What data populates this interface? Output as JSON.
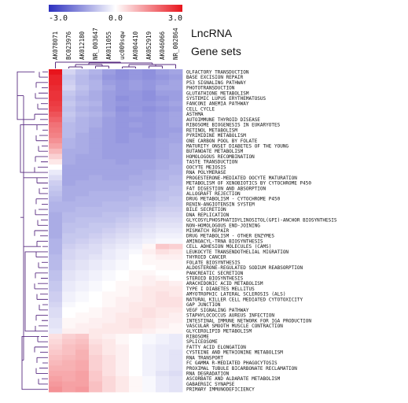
{
  "legend": {
    "min_label": "-3.0",
    "mid_label": "0.0",
    "max_label": "3.0",
    "low_color": "#2b2fbf",
    "mid_color": "#ffffff",
    "high_color": "#e8141c"
  },
  "side_labels": {
    "lncrna": "LncRNA",
    "gene_sets": "Gene sets"
  },
  "chart_data": {
    "type": "heatmap",
    "title": "",
    "color_range": [
      -3.0,
      3.0
    ],
    "columns": [
      "AK078071",
      "BC023976",
      "AK012180",
      "NR_003647",
      "AK011055",
      "uc009sqw",
      "AK004410",
      "AK052919",
      "AK046066",
      "NR_002864"
    ],
    "rows": [
      "OLFACTORY TRANSDUCTION",
      "BASE EXCISION REPAIR",
      "P53 SIGNALING PATHWAY",
      "PHOTOTRANSDUCTION",
      "GLUTATHIONE METABOLISM",
      "SYSTEMIC LUPUS ERYTHEMATOSUS",
      "FANCONI ANEMIA PATHWAY",
      "CELL CYCLE",
      "ASTHMA",
      "AUTOIMMUNE THYROID DISEASE",
      "RIBOSOME BIOGENESIS IN EUKARYOTES",
      "RETINOL METABOLISM",
      "PYRIMIDINE METABOLISM",
      "ONE CARBON POOL BY FOLATE",
      "MATURITY ONSET DIABETES OF THE YOUNG",
      "BUTANOATE METABOLISM",
      "HOMOLOGOUS RECOMBINATION",
      "TASTE TRANSDUCTION",
      "OOCYTE MEIOSIS",
      "RNA POLYMERASE",
      "PROGESTERONE-MEDIATED OOCYTE MATURATION",
      "METABOLISM OF XENOBIOTICS BY CYTOCHROME P450",
      "FAT DIGESTION AND ABSORPTION",
      "ALLOGRAFT REJECTION",
      "DRUG METABOLISM - CYTOCHROME P450",
      "RENIN-ANGIOTENSIN SYSTEM",
      "BILE SECRETION",
      "DNA REPLICATION",
      "GLYCOSYLPHOSPHATIDYLINOSITOL(GPI)-ANCHOR BIOSYNTHESIS",
      "NON-HOMOLOGOUS END-JOINING",
      "MISMATCH REPAIR",
      "DRUG METABOLISM - OTHER ENZYMES",
      "AMINOACYL-TRNA BIOSYNTHESIS",
      "CELL ADHESION MOLECULES (CAMS)",
      "LEUKOCYTE TRANSENDOTHELIAL MIGRATION",
      "THYROID CANCER",
      "FOLATE BIOSYNTHESIS",
      "ALDOSTERONE-REGULATED SODIUM REABSORPTION",
      "PANCREATIC SECRETION",
      "STEROID BIOSYNTHESIS",
      "ARACHIDONIC ACID METABOLISM",
      "TYPE I DIABETES MELLITUS",
      "AMYOTROPHIC LATERAL SCLEROSIS (ALS)",
      "NATURAL KILLER CELL MEDIATED CYTOTOXICITY",
      "GAP JUNCTION",
      "VEGF SIGNALING PATHWAY",
      "STAPHYLOCOCCUS AUREUS INFECTION",
      "INTESTINAL IMMUNE NETWORK FOR IGA PRODUCTION",
      "VASCULAR SMOOTH MUSCLE CONTRACTION",
      "GLYCEROLIPID METABOLISM",
      "RIBOSOME",
      "SPLICEOSOME",
      "FATTY ACID ELONGATION",
      "CYSTEINE AND METHIONINE METABOLISM",
      "RNA TRANSPORT",
      "FC GAMMA R-MEDIATED PHAGOCYTOSIS",
      "PROXIMAL TUBULE BICARBONATE RECLAMATION",
      "RNA DEGRADATION",
      "ASCORBATE AND ALDARATE METABOLISM",
      "GABAERGIC SYNAPSE",
      "PRIMARY IMMUNODEFICIENCY"
    ],
    "values": [
      [
        3.0,
        -0.6,
        -0.9,
        -1.1,
        -1.4,
        -1.6,
        -1.5,
        -1.6,
        -1.4,
        -1.3
      ],
      [
        2.8,
        -0.8,
        -1.0,
        -1.2,
        -1.5,
        -1.6,
        -1.5,
        -1.6,
        -1.5,
        -1.4
      ],
      [
        2.8,
        -0.7,
        -1.0,
        -1.1,
        -1.4,
        -1.5,
        -1.4,
        -1.5,
        -1.4,
        -1.3
      ],
      [
        2.7,
        -0.6,
        -0.9,
        -1.1,
        -1.3,
        -1.5,
        -1.4,
        -1.5,
        -1.3,
        -1.3
      ],
      [
        2.6,
        -0.8,
        -1.0,
        -1.2,
        -1.4,
        -1.5,
        -1.5,
        -1.6,
        -1.4,
        -1.4
      ],
      [
        2.6,
        -0.9,
        -1.1,
        -1.2,
        -1.4,
        -1.6,
        -1.5,
        -1.6,
        -1.5,
        -1.4
      ],
      [
        2.5,
        -0.8,
        -1.0,
        -1.1,
        -1.4,
        -1.5,
        -1.5,
        -1.5,
        -1.4,
        -1.3
      ],
      [
        2.4,
        -0.9,
        -1.1,
        -1.2,
        -1.4,
        -1.6,
        -1.5,
        -1.6,
        -1.5,
        -1.4
      ],
      [
        2.2,
        -0.8,
        -1.0,
        -1.1,
        -1.3,
        -1.5,
        -1.4,
        -1.5,
        -1.4,
        -1.3
      ],
      [
        2.0,
        -0.9,
        -1.1,
        -1.2,
        -1.4,
        -1.5,
        -1.5,
        -1.5,
        -1.4,
        -1.3
      ],
      [
        1.8,
        -1.0,
        -1.1,
        -1.2,
        -1.4,
        -1.5,
        -1.4,
        -1.5,
        -1.4,
        -1.3
      ],
      [
        1.7,
        -1.0,
        -1.1,
        -1.3,
        -1.4,
        -1.5,
        -1.5,
        -1.5,
        -1.4,
        -1.4
      ],
      [
        1.6,
        -1.0,
        -1.2,
        -1.3,
        -1.4,
        -1.5,
        -1.4,
        -1.5,
        -1.4,
        -1.3
      ],
      [
        1.4,
        -1.1,
        -1.2,
        -1.3,
        -1.4,
        -1.5,
        -1.4,
        -1.4,
        -1.3,
        -1.3
      ],
      [
        1.2,
        -1.1,
        -1.2,
        -1.3,
        -1.4,
        -1.4,
        -1.4,
        -1.4,
        -1.3,
        -1.2
      ],
      [
        0.9,
        -1.2,
        -1.2,
        -1.3,
        -1.4,
        -1.4,
        -1.4,
        -1.4,
        -1.3,
        -1.2
      ],
      [
        0.6,
        -1.2,
        -1.3,
        -1.3,
        -1.4,
        -1.4,
        -1.4,
        -1.4,
        -1.3,
        -1.2
      ],
      [
        0.3,
        -1.2,
        -1.3,
        -1.3,
        -1.3,
        -1.4,
        -1.3,
        -1.3,
        -1.2,
        -1.2
      ],
      [
        0.0,
        -1.3,
        -1.3,
        -1.3,
        -1.3,
        -1.3,
        -1.3,
        -1.3,
        -1.2,
        -1.1
      ],
      [
        -0.3,
        -1.3,
        -1.3,
        -1.3,
        -1.3,
        -1.3,
        -1.3,
        -1.2,
        -1.1,
        -1.1
      ],
      [
        -0.5,
        -1.3,
        -1.3,
        -1.2,
        -1.3,
        -1.3,
        -1.2,
        -1.2,
        -1.1,
        -1.0
      ],
      [
        -0.7,
        -1.3,
        -1.2,
        -1.2,
        -1.2,
        -1.2,
        -1.2,
        -1.1,
        -1.0,
        -1.0
      ],
      [
        -0.8,
        -1.2,
        -1.2,
        -1.2,
        -1.2,
        -1.2,
        -1.1,
        -1.1,
        -1.0,
        -0.9
      ],
      [
        -0.9,
        -1.2,
        -1.2,
        -1.1,
        -1.1,
        -1.1,
        -1.1,
        -1.0,
        -0.9,
        -0.9
      ],
      [
        -1.0,
        -1.2,
        -1.1,
        -1.1,
        -1.1,
        -1.1,
        -1.0,
        -1.0,
        -0.9,
        -0.8
      ],
      [
        -1.1,
        -1.1,
        -1.1,
        -1.1,
        -1.0,
        -1.0,
        -1.0,
        -0.9,
        -0.8,
        -0.8
      ],
      [
        -1.1,
        -1.1,
        -1.0,
        -1.0,
        -1.0,
        -1.0,
        -0.9,
        -0.8,
        -0.7,
        -0.7
      ],
      [
        -1.2,
        -1.0,
        -1.0,
        -1.0,
        -0.9,
        -0.9,
        -0.8,
        -0.7,
        -0.6,
        -0.6
      ],
      [
        -1.2,
        -1.0,
        -0.9,
        -0.9,
        -0.9,
        -0.8,
        -0.7,
        -0.6,
        -0.5,
        -0.5
      ],
      [
        -1.2,
        -0.9,
        -0.9,
        -0.8,
        -0.8,
        -0.7,
        -0.6,
        -0.5,
        -0.4,
        -0.4
      ],
      [
        -1.2,
        -0.9,
        -0.8,
        -0.8,
        -0.7,
        -0.6,
        -0.5,
        -0.4,
        -0.3,
        -0.3
      ],
      [
        -1.2,
        -0.8,
        -0.8,
        -0.7,
        -0.6,
        -0.5,
        -0.4,
        -0.3,
        -0.2,
        -0.2
      ],
      [
        -1.1,
        -0.8,
        -0.7,
        -0.6,
        -0.5,
        -0.4,
        -0.3,
        -0.2,
        -0.1,
        -0.1
      ],
      [
        -1.1,
        -0.7,
        -0.6,
        -0.5,
        -0.4,
        -0.3,
        -0.2,
        0.1,
        0.7,
        0.6
      ],
      [
        -1.1,
        -0.6,
        -0.5,
        -0.5,
        -0.3,
        -0.2,
        -0.1,
        0.2,
        0.4,
        0.3
      ],
      [
        -1.0,
        -0.6,
        -0.5,
        -0.4,
        -0.3,
        -0.2,
        0.0,
        0.1,
        0.2,
        0.2
      ],
      [
        -1.0,
        -0.5,
        -0.4,
        -0.3,
        -0.2,
        -0.1,
        0.0,
        0.1,
        0.1,
        0.1
      ],
      [
        -1.0,
        -0.5,
        -0.4,
        -0.3,
        -0.2,
        -0.1,
        0.0,
        0.0,
        0.1,
        0.1
      ],
      [
        -0.9,
        -0.4,
        -0.3,
        -0.2,
        -0.1,
        0.0,
        0.1,
        0.1,
        0.0,
        0.0
      ],
      [
        -0.9,
        -0.4,
        -0.3,
        -0.2,
        -0.1,
        0.0,
        0.1,
        0.2,
        0.1,
        0.0
      ],
      [
        -0.8,
        -0.3,
        -0.2,
        -0.1,
        0.0,
        0.1,
        0.1,
        0.2,
        0.3,
        0.2
      ],
      [
        -0.8,
        -0.3,
        -0.2,
        -0.1,
        0.0,
        0.1,
        0.2,
        0.3,
        0.3,
        0.3
      ],
      [
        -0.7,
        -0.2,
        -0.1,
        0.0,
        0.1,
        0.1,
        0.2,
        0.3,
        0.4,
        0.3
      ],
      [
        -0.7,
        -0.2,
        -0.1,
        0.0,
        0.1,
        0.2,
        0.2,
        0.3,
        0.4,
        0.4
      ],
      [
        -0.6,
        -0.1,
        0.0,
        0.0,
        0.1,
        0.2,
        0.3,
        0.3,
        0.4,
        0.4
      ],
      [
        -0.5,
        0.0,
        0.0,
        0.1,
        0.2,
        0.2,
        0.3,
        0.4,
        0.3,
        0.3
      ],
      [
        -0.5,
        0.0,
        0.1,
        0.1,
        0.2,
        0.3,
        0.3,
        0.4,
        0.3,
        0.2
      ],
      [
        -0.4,
        0.1,
        0.1,
        0.2,
        0.2,
        0.3,
        0.4,
        0.3,
        0.2,
        0.2
      ],
      [
        -0.4,
        0.1,
        0.2,
        0.2,
        0.3,
        0.3,
        0.4,
        0.3,
        0.2,
        0.1
      ],
      [
        -0.3,
        0.2,
        0.2,
        0.3,
        0.3,
        0.3,
        0.3,
        0.2,
        0.1,
        0.1
      ],
      [
        0.4,
        0.6,
        0.7,
        0.3,
        0.2,
        0.1,
        0.0,
        -0.1,
        -0.2,
        -0.3
      ],
      [
        0.5,
        0.7,
        0.8,
        0.4,
        0.3,
        0.1,
        0.0,
        -0.1,
        -0.2,
        -0.3
      ],
      [
        0.6,
        0.8,
        0.9,
        0.5,
        0.3,
        0.2,
        0.0,
        -0.2,
        -0.3,
        -0.3
      ],
      [
        0.7,
        0.8,
        1.0,
        0.5,
        0.3,
        0.2,
        0.0,
        -0.2,
        -0.3,
        -0.4
      ],
      [
        0.8,
        0.9,
        1.0,
        0.6,
        0.4,
        0.2,
        0.0,
        -0.2,
        -0.3,
        -0.4
      ],
      [
        0.9,
        1.0,
        1.1,
        0.6,
        0.4,
        0.2,
        0.0,
        -0.2,
        -0.3,
        -0.4
      ],
      [
        1.0,
        1.0,
        1.1,
        0.6,
        0.4,
        0.2,
        0.0,
        -0.2,
        -0.3,
        -0.4
      ],
      [
        1.1,
        1.1,
        1.2,
        0.7,
        0.4,
        0.2,
        0.0,
        -0.2,
        -0.4,
        -0.5
      ],
      [
        1.2,
        1.1,
        1.2,
        0.7,
        0.5,
        0.3,
        0.1,
        -0.1,
        -0.3,
        -0.4
      ],
      [
        1.3,
        1.2,
        1.2,
        0.8,
        0.5,
        0.3,
        0.1,
        -0.1,
        -0.3,
        -0.4
      ],
      [
        1.4,
        1.2,
        1.3,
        0.8,
        0.5,
        0.3,
        0.1,
        -0.1,
        -0.3,
        -0.4
      ]
    ]
  }
}
